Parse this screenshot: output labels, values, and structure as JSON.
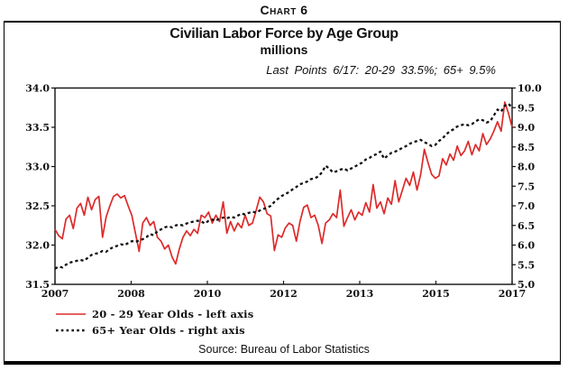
{
  "page": {
    "chart_label": "Chart 6",
    "source": "Source: Bureau of Labor Statistics"
  },
  "chart": {
    "title": "Civilian Labor Force by Age Group",
    "subtitle": "millions",
    "annotation": "Last Points 6/17: 20-29 33.5%; 65+ 9.5%",
    "legend": [
      {
        "label": "20 - 29 Year Olds - left axis",
        "style": "solid-red"
      },
      {
        "label": "65+ Year Olds - right axis",
        "style": "dotted-black"
      }
    ]
  },
  "colors": {
    "red_line": "#dd2a2a",
    "black_line": "#111111",
    "frame": "#111111"
  },
  "chart_data": {
    "type": "line",
    "x_start": "2007-01",
    "x_end": "2017-06",
    "months": 126,
    "x_tick_labels": [
      "2007",
      "2008",
      "2010",
      "2012",
      "2013",
      "2015",
      "2017"
    ],
    "left_axis": {
      "label_for": "20 - 29 Year Olds",
      "min": 31.5,
      "max": 34.0,
      "tick_step": 0.5,
      "tick_labels": [
        "34.0",
        "33.5",
        "33.0",
        "32.5",
        "32.0",
        "31.5"
      ]
    },
    "right_axis": {
      "label_for": "65+ Year Olds",
      "min": 5.0,
      "max": 10.0,
      "tick_step": 0.5,
      "tick_labels": [
        "10.0",
        "9.5",
        "9.0",
        "8.5",
        "8.0",
        "7.5",
        "7.0",
        "6.5",
        "6.0",
        "5.5",
        "5.0"
      ]
    },
    "last_points": {
      "date": "6/17",
      "age_20_29": 33.5,
      "age_65_plus": 9.5
    },
    "series": [
      {
        "name": "20 - 29 Year Olds",
        "axis": "left",
        "line": "solid",
        "values": [
          32.2,
          32.12,
          32.08,
          32.33,
          32.38,
          32.21,
          32.47,
          32.53,
          32.38,
          32.61,
          32.45,
          32.58,
          32.62,
          32.1,
          32.36,
          32.5,
          32.62,
          32.65,
          32.6,
          32.63,
          32.5,
          32.38,
          32.15,
          31.92,
          32.28,
          32.35,
          32.25,
          32.3,
          32.1,
          32.05,
          31.95,
          32.0,
          31.85,
          31.76,
          31.95,
          32.1,
          32.18,
          32.12,
          32.2,
          32.15,
          32.38,
          32.35,
          32.42,
          32.28,
          32.38,
          32.3,
          32.55,
          32.15,
          32.3,
          32.18,
          32.28,
          32.22,
          32.38,
          32.25,
          32.28,
          32.44,
          32.61,
          32.55,
          32.4,
          32.37,
          31.93,
          32.13,
          32.1,
          32.22,
          32.28,
          32.25,
          32.05,
          32.3,
          32.48,
          32.51,
          32.35,
          32.38,
          32.25,
          32.02,
          32.28,
          32.32,
          32.4,
          32.35,
          32.7,
          32.24,
          32.35,
          32.45,
          32.32,
          32.42,
          32.38,
          32.54,
          32.42,
          32.77,
          32.47,
          32.55,
          32.4,
          32.6,
          32.52,
          32.82,
          32.55,
          32.7,
          32.85,
          32.76,
          32.93,
          32.7,
          32.9,
          33.22,
          33.05,
          32.9,
          32.85,
          32.88,
          33.1,
          33.02,
          33.16,
          33.08,
          33.26,
          33.14,
          33.2,
          33.32,
          33.15,
          33.28,
          33.2,
          33.42,
          33.28,
          33.35,
          33.45,
          33.57,
          33.45,
          33.82,
          33.68,
          33.5
        ]
      },
      {
        "name": "65+ Year Olds",
        "axis": "right",
        "line": "dashed",
        "values": [
          5.4,
          5.45,
          5.43,
          5.5,
          5.55,
          5.58,
          5.6,
          5.62,
          5.6,
          5.68,
          5.75,
          5.78,
          5.8,
          5.85,
          5.83,
          5.9,
          5.95,
          5.98,
          6.02,
          6.0,
          6.05,
          6.1,
          6.08,
          6.12,
          6.15,
          6.2,
          6.28,
          6.25,
          6.35,
          6.4,
          6.45,
          6.48,
          6.45,
          6.5,
          6.52,
          6.5,
          6.55,
          6.58,
          6.6,
          6.62,
          6.6,
          6.55,
          6.62,
          6.65,
          6.62,
          6.68,
          6.7,
          6.68,
          6.72,
          6.7,
          6.75,
          6.8,
          6.78,
          6.82,
          6.85,
          6.83,
          6.88,
          6.92,
          6.95,
          7.0,
          7.1,
          7.18,
          7.25,
          7.3,
          7.35,
          7.42,
          7.48,
          7.55,
          7.58,
          7.62,
          7.68,
          7.7,
          7.75,
          7.85,
          8.02,
          7.95,
          7.85,
          7.88,
          7.92,
          7.95,
          7.9,
          7.95,
          8.0,
          8.05,
          8.1,
          8.18,
          8.22,
          8.28,
          8.32,
          8.38,
          8.2,
          8.28,
          8.35,
          8.38,
          8.42,
          8.48,
          8.52,
          8.58,
          8.62,
          8.65,
          8.68,
          8.62,
          8.58,
          8.52,
          8.55,
          8.65,
          8.72,
          8.82,
          8.9,
          8.95,
          9.02,
          9.05,
          9.08,
          9.05,
          9.08,
          9.15,
          9.2,
          9.18,
          9.12,
          9.15,
          9.3,
          9.45,
          9.4,
          9.55,
          9.6,
          9.5
        ]
      }
    ]
  }
}
